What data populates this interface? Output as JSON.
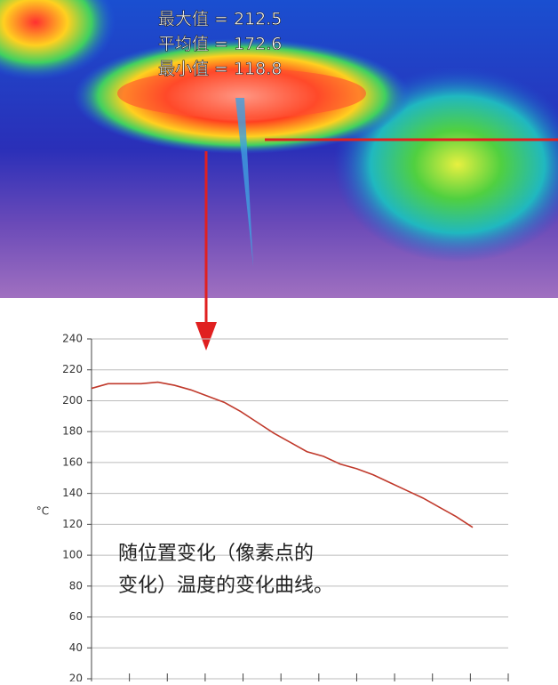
{
  "image_stats": [
    "最大值 = 212.5",
    "平均值 = 172.6",
    "最小值 = 118.8"
  ],
  "chart_data": {
    "type": "line",
    "ylabel": "°C",
    "annotation": [
      "随位置变化（像素点的",
      "变化）温度的变化曲线。"
    ],
    "values": [
      208,
      211,
      211,
      211,
      212,
      210,
      207,
      203,
      199,
      193,
      186,
      179,
      173,
      167,
      164,
      159,
      156,
      152,
      147,
      142,
      137,
      131,
      125,
      118
    ],
    "color": "#c0392b",
    "ylim": [
      20,
      240
    ],
    "yticks": [
      20,
      40,
      60,
      80,
      100,
      120,
      140,
      160,
      180,
      200,
      220,
      240
    ],
    "grid": true
  }
}
